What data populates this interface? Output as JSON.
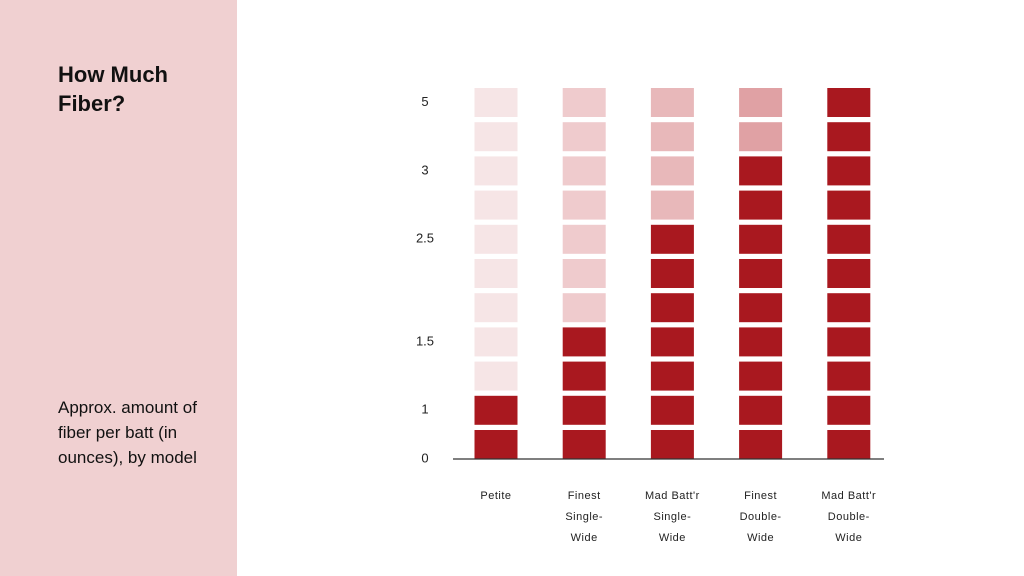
{
  "chart_data": {
    "type": "block",
    "title": "How Much Fiber?",
    "subtitle": "Approx. amount of fiber per batt (in ounces), by model",
    "categories": [
      "Petite",
      "Finest Single-Wide",
      "Mad Batt'r Single-Wide",
      "Finest Double-Wide",
      "Mad Batt'r Double-Wide"
    ],
    "values": [
      1,
      1.5,
      2.5,
      3,
      5
    ],
    "blocks": [
      2,
      4,
      7,
      9,
      11
    ],
    "total_blocks": 11,
    "color": "#a9181f",
    "empty_colors": [
      "#f6e5e6",
      "#efcbcd",
      "#e8b8ba",
      "#e0a1a4",
      "#a9181f"
    ],
    "yticks": [
      0,
      1,
      1.5,
      2.5,
      3,
      5
    ]
  }
}
